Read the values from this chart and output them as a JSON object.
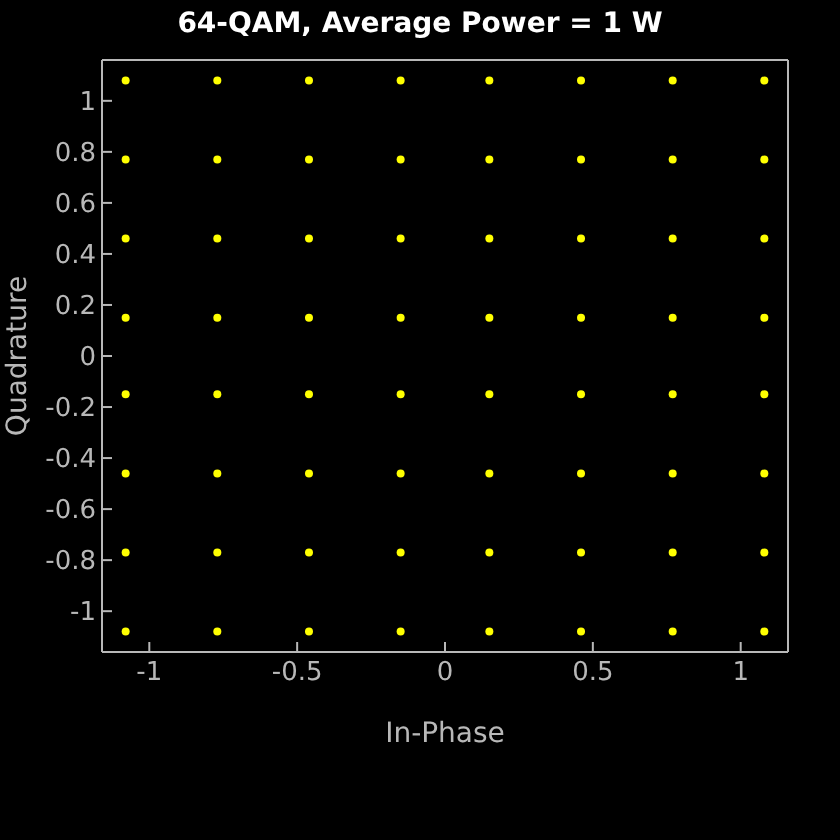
{
  "chart_data": {
    "type": "scatter",
    "title": "64-QAM, Average Power = 1 W",
    "xlabel": "In-Phase",
    "ylabel": "Quadrature",
    "x": [
      -1.08,
      -1.08,
      -1.08,
      -1.08,
      -1.08,
      -1.08,
      -1.08,
      -1.08,
      -0.77,
      -0.77,
      -0.77,
      -0.77,
      -0.77,
      -0.77,
      -0.77,
      -0.77,
      -0.46,
      -0.46,
      -0.46,
      -0.46,
      -0.46,
      -0.46,
      -0.46,
      -0.46,
      -0.15,
      -0.15,
      -0.15,
      -0.15,
      -0.15,
      -0.15,
      -0.15,
      -0.15,
      0.15,
      0.15,
      0.15,
      0.15,
      0.15,
      0.15,
      0.15,
      0.15,
      0.46,
      0.46,
      0.46,
      0.46,
      0.46,
      0.46,
      0.46,
      0.46,
      0.77,
      0.77,
      0.77,
      0.77,
      0.77,
      0.77,
      0.77,
      0.77,
      1.08,
      1.08,
      1.08,
      1.08,
      1.08,
      1.08,
      1.08,
      1.08
    ],
    "series": [
      {
        "color": "#ffff00",
        "values": [
          1.08,
          0.77,
          0.46,
          0.15,
          -0.15,
          -0.46,
          -0.77,
          -1.08,
          1.08,
          0.77,
          0.46,
          0.15,
          -0.15,
          -0.46,
          -0.77,
          -1.08,
          1.08,
          0.77,
          0.46,
          0.15,
          -0.15,
          -0.46,
          -0.77,
          -1.08,
          1.08,
          0.77,
          0.46,
          0.15,
          -0.15,
          -0.46,
          -0.77,
          -1.08,
          1.08,
          0.77,
          0.46,
          0.15,
          -0.15,
          -0.46,
          -0.77,
          -1.08,
          1.08,
          0.77,
          0.46,
          0.15,
          -0.15,
          -0.46,
          -0.77,
          -1.08,
          1.08,
          0.77,
          0.46,
          0.15,
          -0.15,
          -0.46,
          -0.77,
          -1.08,
          1.08,
          0.77,
          0.46,
          0.15,
          -0.15,
          -0.46,
          -0.77,
          -1.08
        ]
      }
    ],
    "xlim": [
      -1.16,
      1.16
    ],
    "xticks": [
      -1,
      -0.5,
      0,
      0.5,
      1
    ],
    "ylim": [
      -1.16,
      1.16
    ],
    "yticks": [
      -1,
      -0.8,
      -0.6,
      -0.4,
      -0.2,
      0,
      0.2,
      0.4,
      0.6,
      0.8,
      1
    ],
    "marker": "circle",
    "grid": false,
    "legend": false
  }
}
